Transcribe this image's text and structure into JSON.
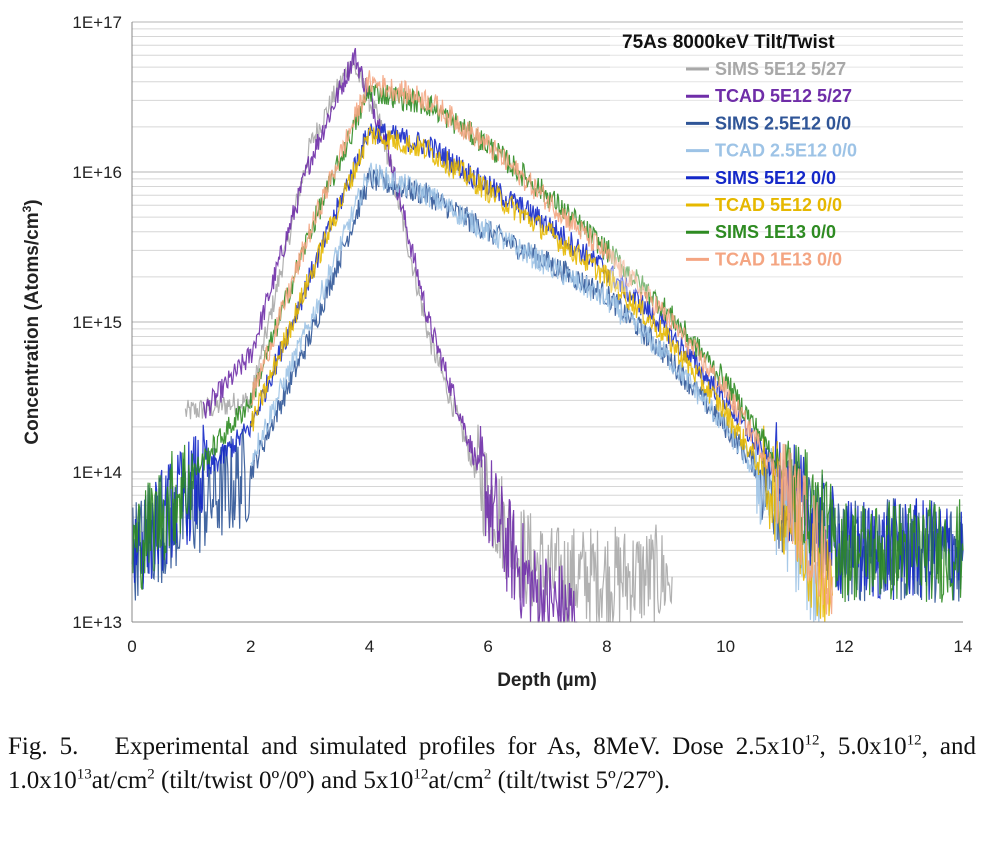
{
  "chart_data": {
    "type": "line",
    "title": "75As 8000keV  Tilt/Twist",
    "xlabel": "Depth (µm)",
    "ylabel": "Concentration (Atoms/cm",
    "ylabel_sup": "3",
    "ylabel_end": ")",
    "xlim": [
      0,
      14
    ],
    "ylim": [
      10000000000000.0,
      1e+17
    ],
    "y_scale": "log",
    "x_ticks": [
      "0",
      "2",
      "4",
      "6",
      "8",
      "10",
      "12",
      "14"
    ],
    "y_ticks": [
      "1E+13",
      "1E+14",
      "1E+15",
      "1E+16",
      "1E+17"
    ],
    "grid": true,
    "legend_position": "top-right",
    "series": [
      {
        "name": "SIMS 5E12 5/27",
        "color": "#a8a8a8",
        "x": [
          0.9,
          2.0,
          3.0,
          3.7,
          4.2,
          5.0,
          5.8,
          6.5,
          7.0,
          8.0,
          9.1
        ],
        "y": [
          250000000000000.0,
          300000000000000.0,
          1.5e+16,
          5.5e+16,
          2e+16,
          800000000000000.0,
          100000000000000.0,
          30000000000000.0,
          20000000000000.0,
          20000000000000.0,
          20000000000000.0
        ]
      },
      {
        "name": "TCAD 5E12 5/27",
        "color": "#6f2da8",
        "x": [
          1.2,
          2.0,
          3.0,
          3.75,
          4.3,
          5.0,
          5.6,
          6.2,
          6.8,
          7.5
        ],
        "y": [
          250000000000000.0,
          600000000000000.0,
          1.2e+16,
          6e+16,
          1.5e+16,
          1000000000000000.0,
          200000000000000.0,
          40000000000000.0,
          15000000000000.0,
          10000000000000.0
        ]
      },
      {
        "name": "SIMS 2.5E12 0/0",
        "color": "#2f5597",
        "x": [
          0,
          2.0,
          3.0,
          4.0,
          5.0,
          6.0,
          7.0,
          8.0,
          9.0,
          10.0,
          11.0,
          12.0,
          14.0
        ],
        "y": [
          30000000000000.0,
          100000000000000.0,
          800000000000000.0,
          9000000000000000.0,
          7000000000000000.0,
          4000000000000000.0,
          2500000000000000.0,
          1500000000000000.0,
          600000000000000.0,
          200000000000000.0,
          60000000000000.0,
          30000000000000.0,
          30000000000000.0
        ]
      },
      {
        "name": "TCAD 2.5E12 0/0",
        "color": "#9dc3e6",
        "x": [
          2.0,
          3.0,
          4.0,
          5.0,
          6.0,
          7.0,
          8.0,
          9.0,
          10.0,
          11.0,
          11.6
        ],
        "y": [
          120000000000000.0,
          1000000000000000.0,
          1e+16,
          7000000000000000.0,
          4000000000000000.0,
          2400000000000000.0,
          1400000000000000.0,
          600000000000000.0,
          200000000000000.0,
          50000000000000.0,
          15000000000000.0
        ]
      },
      {
        "name": "SIMS 5E12 0/0",
        "color": "#1428c8",
        "x": [
          0,
          2.0,
          3.0,
          4.0,
          5.0,
          6.0,
          7.0,
          8.0,
          9.0,
          10.0,
          11.0,
          12.0,
          14.0
        ],
        "y": [
          30000000000000.0,
          200000000000000.0,
          2000000000000000.0,
          1.9e+16,
          1.5e+16,
          8000000000000000.0,
          4500000000000000.0,
          2200000000000000.0,
          900000000000000.0,
          300000000000000.0,
          80000000000000.0,
          30000000000000.0,
          30000000000000.0
        ]
      },
      {
        "name": "TCAD 5E12 0/0",
        "color": "#e6b800",
        "x": [
          2.0,
          3.0,
          4.0,
          5.0,
          6.0,
          7.0,
          8.0,
          9.0,
          10.0,
          11.0,
          11.8
        ],
        "y": [
          200000000000000.0,
          2000000000000000.0,
          1.8e+16,
          1.4e+16,
          7500000000000000.0,
          4000000000000000.0,
          2000000000000000.0,
          800000000000000.0,
          250000000000000.0,
          60000000000000.0,
          15000000000000.0
        ]
      },
      {
        "name": "SIMS 1E13 0/0",
        "color": "#2e8b22",
        "x": [
          0,
          2.0,
          3.0,
          4.0,
          5.0,
          6.0,
          7.0,
          8.0,
          9.0,
          10.0,
          11.0,
          12.0,
          14.0
        ],
        "y": [
          30000000000000.0,
          300000000000000.0,
          4000000000000000.0,
          3.5e+16,
          2.8e+16,
          1.5e+16,
          7000000000000000.0,
          3000000000000000.0,
          1200000000000000.0,
          400000000000000.0,
          100000000000000.0,
          30000000000000.0,
          30000000000000.0
        ]
      },
      {
        "name": "TCAD 1E13 0/0",
        "color": "#f4a582",
        "x": [
          2.0,
          3.0,
          4.0,
          5.0,
          6.0,
          7.0,
          8.0,
          9.0,
          10.0,
          11.0,
          11.8
        ],
        "y": [
          300000000000000.0,
          4000000000000000.0,
          4e+16,
          3e+16,
          1.5e+16,
          6500000000000000.0,
          2800000000000000.0,
          1100000000000000.0,
          350000000000000.0,
          80000000000000.0,
          20000000000000.0
        ]
      }
    ]
  },
  "caption": {
    "p1": "Fig. 5.   Experimental and simulated profiles for As, 8MeV. Dose 2.5x10",
    "s1": "12",
    "p2": ", 5.0x10",
    "s2": "12",
    "p3": ", and 1.0x10",
    "s3": "13",
    "p4": "at/cm",
    "s4": "2",
    "p5": " (tilt/twist 0º/0º) and 5x10",
    "s5": "12",
    "p6": "at/cm",
    "s6": "2",
    "p7": " (tilt/twist 5º/27º)."
  }
}
